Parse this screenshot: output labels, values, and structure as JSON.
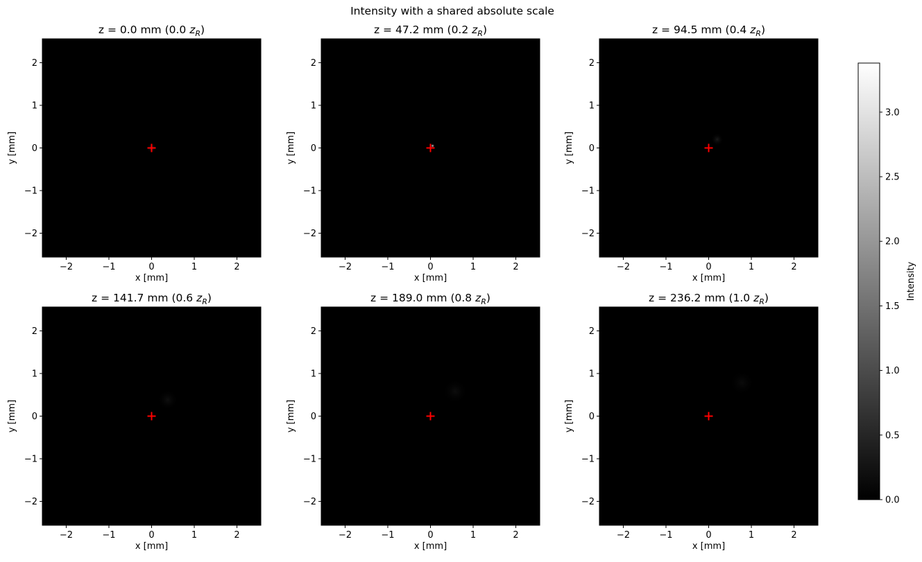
{
  "figure": {
    "suptitle": "Intensity with a shared absolute scale"
  },
  "chart_data": {
    "type": "heatmap",
    "colormap": "gray",
    "colorbar": {
      "label": "Intensity",
      "range": [
        0.0,
        3.38
      ],
      "ticks": [
        0.0,
        0.5,
        1.0,
        1.5,
        2.0,
        2.5,
        3.0
      ],
      "tick_labels": [
        "0.0",
        "0.5",
        "1.0",
        "1.5",
        "2.0",
        "2.5",
        "3.0"
      ]
    },
    "axes_common": {
      "xlabel": "x [mm]",
      "ylabel": "y [mm]",
      "xlim": [
        -2.56,
        2.56
      ],
      "ylim": [
        -2.56,
        2.56
      ],
      "ticks": [
        -2,
        -1,
        0,
        1,
        2
      ],
      "tick_labels": [
        "−2",
        "−1",
        "0",
        "1",
        "2"
      ],
      "marker": {
        "symbol": "+",
        "x": 0,
        "y": 0,
        "color": "#ff0000"
      }
    },
    "panels": [
      {
        "z_mm": 0.0,
        "title_text": "z = 0.0 mm (0.0 ",
        "title_zr": "z",
        "title_sub": "R",
        "title_close": ")",
        "peak": {
          "x": 0.0,
          "y": 0.0,
          "intensity": 0.55,
          "radius": 0.12
        }
      },
      {
        "z_mm": 47.2,
        "title_text": "z = 47.2 mm (0.2 ",
        "title_zr": "z",
        "title_sub": "R",
        "title_close": ")",
        "peak": {
          "x": 0.05,
          "y": 0.05,
          "intensity": 3.38,
          "radius": 0.05
        }
      },
      {
        "z_mm": 94.5,
        "title_text": "z = 94.5 mm (0.4 ",
        "title_zr": "z",
        "title_sub": "R",
        "title_close": ")",
        "peak": {
          "x": 0.2,
          "y": 0.2,
          "intensity": 0.35,
          "radius": 0.15
        }
      },
      {
        "z_mm": 141.7,
        "title_text": "z = 141.7 mm (0.6 ",
        "title_zr": "z",
        "title_sub": "R",
        "title_close": ")",
        "peak": {
          "x": 0.38,
          "y": 0.38,
          "intensity": 0.2,
          "radius": 0.25
        }
      },
      {
        "z_mm": 189.0,
        "title_text": "z = 189.0 mm (0.8 ",
        "title_zr": "z",
        "title_sub": "R",
        "title_close": ")",
        "peak": {
          "x": 0.58,
          "y": 0.58,
          "intensity": 0.17,
          "radius": 0.3
        }
      },
      {
        "z_mm": 236.2,
        "title_text": "z = 236.2 mm (1.0 ",
        "title_zr": "z",
        "title_sub": "R",
        "title_close": ")",
        "peak": {
          "x": 0.78,
          "y": 0.78,
          "intensity": 0.15,
          "radius": 0.3
        }
      }
    ]
  }
}
